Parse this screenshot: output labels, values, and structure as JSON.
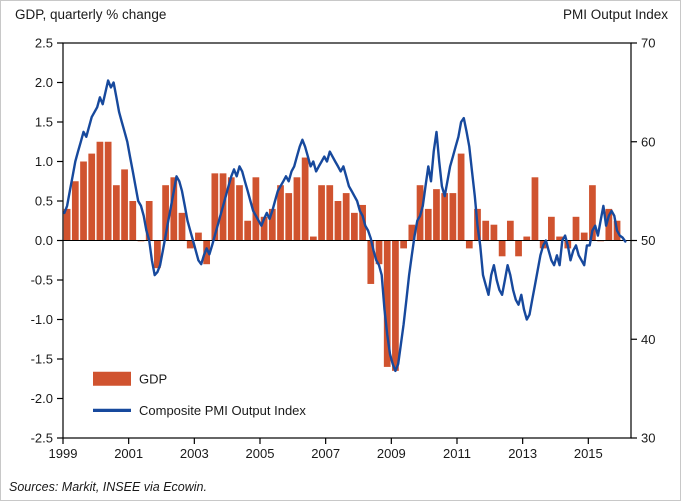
{
  "header": {
    "left_title": "GDP, quarterly % change",
    "right_title": "PMI Output Index"
  },
  "source": "Sources: Markit, INSEE via Ecowin.",
  "colors": {
    "bar": "#d0532f",
    "line": "#17499d",
    "axis": "#000000",
    "text": "#1a1a1a"
  },
  "chart_data": {
    "type": "bar",
    "subtype": "combo-bar-line",
    "title": "",
    "xlabel": "",
    "ylabel_left": "GDP, quarterly % change",
    "ylabel_right": "PMI Output Index",
    "left_axis": {
      "min": -2.5,
      "max": 2.5,
      "ticks": [
        2.5,
        2.0,
        1.5,
        1.0,
        0.5,
        0.0,
        -0.5,
        -1.0,
        -1.5,
        -2.0,
        -2.5
      ]
    },
    "right_axis": {
      "min": 30,
      "max": 70,
      "ticks": [
        70,
        60,
        50,
        40,
        30
      ]
    },
    "x_axis": {
      "min": 1999,
      "max": 2016.3,
      "tick_years": [
        1999,
        2001,
        2003,
        2005,
        2007,
        2009,
        2011,
        2013,
        2015
      ]
    },
    "grid": false,
    "legend_position": "inside-lower-left",
    "legend": [
      {
        "label": "GDP",
        "swatch": "bar"
      },
      {
        "label": "Composite PMI Output Index",
        "swatch": "line"
      }
    ],
    "series": [
      {
        "name": "GDP",
        "type": "bar",
        "axis": "left",
        "period": "quarterly",
        "start_year": 1999,
        "values": [
          0.4,
          0.75,
          1.0,
          1.1,
          1.25,
          1.25,
          0.7,
          0.9,
          0.5,
          0.0,
          0.5,
          -0.35,
          0.7,
          0.8,
          0.35,
          -0.1,
          0.1,
          -0.3,
          0.85,
          0.85,
          0.8,
          0.7,
          0.25,
          0.8,
          0.3,
          0.4,
          0.7,
          0.6,
          0.8,
          1.05,
          0.05,
          0.7,
          0.7,
          0.5,
          0.6,
          0.35,
          0.45,
          -0.55,
          -0.3,
          -1.6,
          -1.65,
          -0.1,
          0.2,
          0.7,
          0.4,
          0.65,
          0.6,
          0.6,
          1.1,
          -0.1,
          0.4,
          0.25,
          0.2,
          -0.2,
          0.25,
          -0.2,
          0.05,
          0.8,
          -0.1,
          0.3,
          0.05,
          -0.1,
          0.3,
          0.1,
          0.7,
          0.0,
          0.4,
          0.25
        ]
      },
      {
        "name": "Composite PMI Output Index",
        "type": "line",
        "axis": "right",
        "period": "monthly",
        "start_year": 1999,
        "values": [
          52.8,
          53.5,
          55.0,
          56.5,
          58.0,
          59.0,
          60.0,
          61.0,
          60.5,
          61.5,
          62.5,
          63.0,
          63.5,
          64.5,
          63.8,
          65.0,
          66.2,
          65.5,
          66.0,
          64.5,
          63.0,
          62.0,
          61.0,
          60.0,
          58.5,
          57.0,
          55.5,
          54.0,
          53.5,
          52.5,
          51.0,
          50.0,
          48.0,
          46.5,
          46.8,
          47.5,
          49.0,
          50.5,
          52.0,
          53.5,
          55.0,
          56.5,
          56.0,
          55.0,
          53.5,
          52.0,
          51.0,
          50.0,
          49.0,
          48.0,
          47.6,
          48.5,
          49.2,
          48.6,
          49.5,
          50.5,
          51.5,
          52.5,
          53.5,
          54.5,
          55.5,
          56.5,
          57.2,
          56.5,
          57.5,
          57.0,
          56.0,
          55.0,
          54.0,
          53.0,
          52.5,
          52.0,
          51.5,
          52.2,
          52.8,
          52.2,
          53.0,
          54.0,
          55.0,
          55.5,
          56.0,
          56.5,
          56.0,
          57.0,
          57.5,
          58.5,
          59.5,
          60.2,
          59.5,
          58.5,
          57.5,
          58.0,
          57.0,
          57.5,
          58.0,
          58.5,
          58.0,
          59.0,
          58.5,
          58.0,
          57.5,
          57.0,
          57.5,
          56.5,
          55.5,
          55.0,
          54.5,
          54.0,
          53.0,
          52.5,
          51.5,
          51.0,
          50.2,
          49.0,
          48.0,
          47.5,
          46.5,
          43.0,
          40.5,
          38.5,
          37.5,
          36.8,
          37.5,
          39.5,
          41.5,
          44.0,
          46.5,
          48.5,
          50.5,
          52.0,
          52.5,
          53.5,
          55.5,
          57.5,
          56.0,
          59.0,
          61.0,
          58.0,
          55.5,
          54.5,
          56.0,
          57.5,
          58.5,
          59.5,
          60.5,
          62.0,
          62.4,
          61.0,
          59.5,
          57.0,
          54.5,
          51.5,
          49.5,
          46.5,
          45.5,
          44.5,
          46.5,
          47.5,
          46.0,
          45.0,
          44.5,
          46.0,
          47.5,
          46.5,
          45.0,
          44.0,
          43.5,
          44.5,
          43.0,
          42.0,
          42.5,
          44.0,
          45.5,
          47.0,
          48.5,
          49.5,
          50.0,
          49.0,
          48.0,
          47.5,
          48.5,
          47.5,
          50.0,
          50.5,
          49.5,
          48.0,
          49.0,
          49.5,
          48.5,
          48.0,
          47.5,
          49.5,
          49.5,
          51.0,
          51.5,
          50.5,
          52.0,
          53.5,
          51.5,
          52.5,
          53.0,
          52.5,
          51.0,
          50.5,
          50.3,
          49.9
        ]
      }
    ]
  }
}
